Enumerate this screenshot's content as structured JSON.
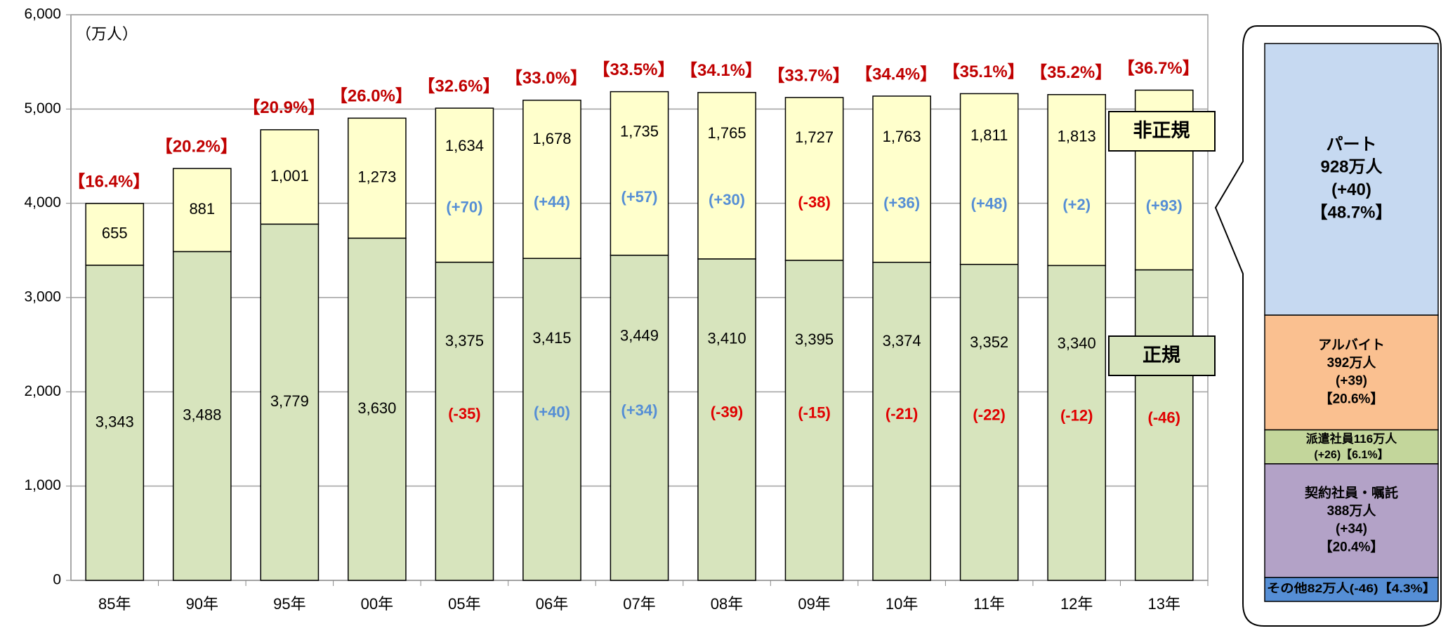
{
  "chart_data": [
    {
      "type": "stacked_bar",
      "unit_label": "（万人）",
      "categories": [
        "85年",
        "90年",
        "95年",
        "00年",
        "05年",
        "06年",
        "07年",
        "08年",
        "09年",
        "10年",
        "11年",
        "12年",
        "13年"
      ],
      "series": [
        {
          "name": "正規",
          "color": "#d7e4bd",
          "values": [
            3343,
            3488,
            3779,
            3630,
            3375,
            3415,
            3449,
            3410,
            3395,
            3374,
            3352,
            3340,
            3294
          ],
          "value_labels": [
            "3,343",
            "3,488",
            "3,779",
            "3,630",
            "3,375",
            "3,415",
            "3,449",
            "3,410",
            "3,395",
            "3,374",
            "3,352",
            "3,340",
            "3,294"
          ],
          "changes": [
            null,
            null,
            null,
            null,
            "(-35)",
            "(+40)",
            "(+34)",
            "(-39)",
            "(-15)",
            "(-21)",
            "(-22)",
            "(-12)",
            "(-46)"
          ]
        },
        {
          "name": "非正規",
          "color": "#ffffcc",
          "values": [
            655,
            881,
            1001,
            1273,
            1634,
            1678,
            1735,
            1765,
            1727,
            1763,
            1811,
            1813,
            1906
          ],
          "value_labels": [
            "655",
            "881",
            "1,001",
            "1,273",
            "1,634",
            "1,678",
            "1,735",
            "1,765",
            "1,727",
            "1,763",
            "1,811",
            "1,813",
            "1,906"
          ],
          "changes": [
            null,
            null,
            null,
            null,
            "(+70)",
            "(+44)",
            "(+57)",
            "(+30)",
            "(-38)",
            "(+36)",
            "(+48)",
            "(+2)",
            "(+93)"
          ]
        }
      ],
      "share_labels": [
        "【16.4%】",
        "【20.2%】",
        "【20.9%】",
        "【26.0%】",
        "【32.6%】",
        "【33.0%】",
        "【33.5%】",
        "【34.1%】",
        "【33.7%】",
        "【34.4%】",
        "【35.1%】",
        "【35.2%】",
        "【36.7%】"
      ],
      "ylim": [
        0,
        6000
      ],
      "yticks": [
        0,
        {
          "value": 1000,
          "label": "1,000"
        },
        {
          "value": 2000,
          "label": "2,000"
        },
        {
          "value": 3000,
          "label": "3,000"
        },
        {
          "value": 4000,
          "label": "4,000"
        },
        {
          "value": 5000,
          "label": "5,000"
        },
        {
          "value": 6000,
          "label": "6,000"
        }
      ],
      "grid": true
    },
    {
      "type": "breakdown",
      "items": [
        {
          "name": "パート",
          "value": 928,
          "value_label": "928万人",
          "change": "(+40)",
          "share_label": "【48.7%】",
          "color": "#c6d9f1"
        },
        {
          "name": "アルバイト",
          "value": 392,
          "value_label": "392万人",
          "change": "(+39)",
          "share_label": "【20.6%】",
          "color": "#fac090"
        },
        {
          "name": "派遣社員",
          "value": 116,
          "value_label": "116万人",
          "change": "(+26)",
          "share_label": "【6.1%】",
          "color": "#c3d69b"
        },
        {
          "name": "契約社員・嘱託",
          "value": 388,
          "value_label": "388万人",
          "change": "(+34)",
          "share_label": "【20.4%】",
          "color": "#b3a2c7"
        },
        {
          "name": "その他",
          "value": 82,
          "value_label": "82万人",
          "change": "(-46)",
          "share_label": "【4.3%】",
          "color": "#558ed5"
        }
      ]
    }
  ]
}
